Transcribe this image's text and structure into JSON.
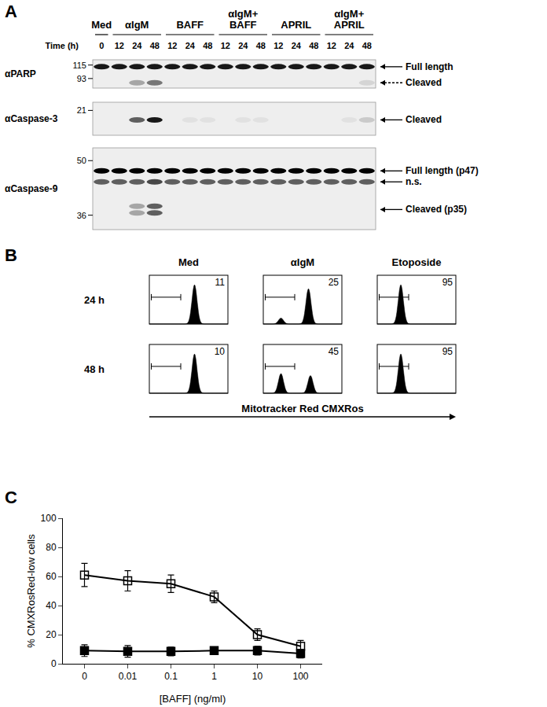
{
  "panel_a": {
    "label": "A",
    "time_label": "Time (h)",
    "groups": [
      {
        "lines": [
          "Med"
        ],
        "times": [
          0
        ]
      },
      {
        "lines": [
          "αIgM"
        ],
        "times": [
          12,
          24,
          48
        ]
      },
      {
        "lines": [
          "BAFF"
        ],
        "times": [
          12,
          24,
          48
        ]
      },
      {
        "lines": [
          "αIgM+",
          "BAFF"
        ],
        "times": [
          12,
          24,
          48
        ]
      },
      {
        "lines": [
          "APRIL"
        ],
        "times": [
          12,
          24,
          48
        ]
      },
      {
        "lines": [
          "αIgM+",
          "APRIL"
        ],
        "times": [
          12,
          24,
          48
        ]
      }
    ],
    "blots": [
      {
        "antibody": "αPARP",
        "kda_range": [
          125,
          80
        ],
        "markers": [
          115,
          93
        ],
        "bands": [
          {
            "label": "Full length",
            "kda": [
              112
            ],
            "intensity": [
              0.9,
              0.9,
              0.9,
              0.9,
              0.9,
              0.9,
              0.9,
              0.9,
              0.9,
              0.9,
              0.9,
              0.9,
              0.9,
              0.9,
              0.9,
              0.9
            ]
          },
          {
            "label": "Cleaved",
            "kda": [
              87
            ],
            "intensity": [
              0,
              0,
              0.3,
              0.5,
              0,
              0,
              0,
              0,
              0,
              0,
              0,
              0,
              0,
              0,
              0,
              0.1
            ]
          }
        ]
      },
      {
        "antibody": "αCaspase-3",
        "kda_range": [
          24,
          14
        ],
        "markers": [
          21
        ],
        "bands": [
          {
            "label": "Cleaved",
            "kda": [
              18
            ],
            "intensity": [
              0,
              0,
              0.6,
              0.9,
              0,
              0.05,
              0.05,
              0,
              0.05,
              0.05,
              0,
              0,
              0,
              0,
              0.05,
              0.15
            ]
          }
        ]
      },
      {
        "antibody": "αCaspase-9",
        "kda_range": [
          54,
          33
        ],
        "markers": [
          50,
          36
        ],
        "bands": [
          {
            "label": "Full length (p47)",
            "kda": [
              47
            ],
            "intensity": [
              1,
              1,
              1,
              1,
              1,
              1,
              1,
              1,
              1,
              1,
              1,
              1,
              1,
              1,
              1,
              1
            ]
          },
          {
            "label": "n.s.",
            "kda": [
              44
            ],
            "intensity": [
              0.6,
              0.6,
              0.6,
              0.7,
              0.6,
              0.6,
              0.6,
              0.6,
              0.6,
              0.6,
              0.6,
              0.6,
              0.6,
              0.6,
              0.6,
              0.6
            ]
          },
          {
            "label": "Cleaved (p35)",
            "kda": [
              38,
              36.5
            ],
            "intensity": [
              0,
              0,
              0.3,
              0.6,
              0,
              0,
              0,
              0,
              0,
              0,
              0,
              0,
              0,
              0,
              0,
              0
            ]
          }
        ]
      }
    ]
  },
  "panel_b": {
    "label": "B",
    "columns": [
      "Med",
      "αIgM",
      "Etoposide"
    ],
    "xlim_log": [
      0,
      4
    ],
    "gate": [
      0.1,
      1.6
    ],
    "xlabel": "Mitotracker Red CMXRos",
    "rows": [
      {
        "label": "24 h",
        "cells": [
          {
            "percent": 11,
            "peaks": [
              [
                2.3,
                1
              ]
            ]
          },
          {
            "percent": 25,
            "peaks": [
              [
                0.9,
                0.15
              ],
              [
                2.3,
                0.9
              ]
            ]
          },
          {
            "percent": 95,
            "peaks": [
              [
                1.2,
                1
              ]
            ]
          }
        ]
      },
      {
        "label": "48 h",
        "cells": [
          {
            "percent": 10,
            "peaks": [
              [
                2.3,
                1
              ]
            ]
          },
          {
            "percent": 45,
            "peaks": [
              [
                0.9,
                0.5
              ],
              [
                2.4,
                0.45
              ]
            ]
          },
          {
            "percent": 95,
            "peaks": [
              [
                1.2,
                1
              ]
            ]
          }
        ]
      }
    ]
  },
  "panel_c": {
    "label": "C"
  },
  "chart_data": {
    "type": "line",
    "xlabel": "[BAFF] (ng/ml)",
    "ylabel": "% CMXRosRed-low cells",
    "categories": [
      "0",
      "0.01",
      "0.1",
      "1",
      "10",
      "100"
    ],
    "ylim": [
      0,
      100
    ],
    "yticks": [
      0,
      20,
      40,
      60,
      80,
      100
    ],
    "grid": false,
    "series": [
      {
        "color": "#000000",
        "marker": "square-open",
        "values": [
          61,
          57,
          55,
          46,
          20,
          12
        ],
        "errors": [
          8,
          7,
          6,
          4,
          4,
          4
        ]
      },
      {
        "color": "#000000",
        "marker": "square",
        "values": [
          9,
          8.5,
          8.5,
          9,
          9,
          7
        ],
        "errors": [
          4,
          4,
          3,
          2,
          3,
          3
        ]
      }
    ]
  }
}
